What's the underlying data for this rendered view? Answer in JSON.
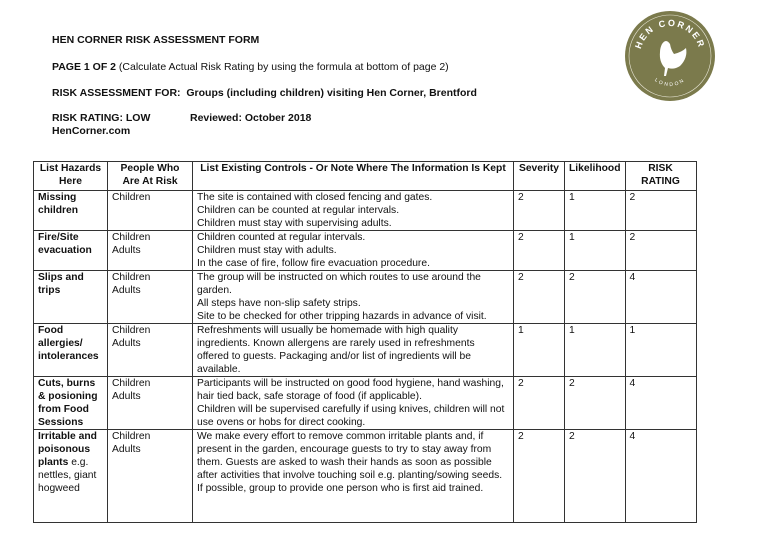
{
  "header": {
    "title": "HEN CORNER RISK ASSESSMENT FORM",
    "page_label": "PAGE 1 OF 2",
    "page_note": "(Calculate Actual Risk Rating by using the formula at bottom of page 2)",
    "for_label": "RISK ASSESSMENT FOR:",
    "for_value": "Groups (including children) visiting Hen Corner, Brentford",
    "risk_rating": "RISK RATING: LOW",
    "reviewed": "Reviewed: October 2018",
    "website": "HenCorner.com"
  },
  "logo": {
    "top_text": "HEN CORNER",
    "bottom_text": "LONDON",
    "color": "#7b7a4c"
  },
  "table": {
    "columns": [
      "List Hazards Here",
      "People Who Are At Risk",
      "List Existing Controls - Or Note Where The Information  Is Kept",
      "Severity",
      "Likelihood",
      "RISK RATING"
    ],
    "rows": [
      {
        "hazard": "Missing children",
        "hazard_note": "",
        "people": [
          "Children"
        ],
        "controls": [
          "The site is contained with closed fencing and gates.",
          "Children can be counted at regular intervals.",
          "Children must stay with supervising adults."
        ],
        "severity": "2",
        "likelihood": "1",
        "rating": "2"
      },
      {
        "hazard": "Fire/Site evacuation",
        "hazard_note": "",
        "people": [
          "Children",
          "Adults"
        ],
        "controls": [
          "Children counted at regular intervals.",
          "Children must stay with adults.",
          "In the case of fire, follow fire evacuation procedure."
        ],
        "severity": "2",
        "likelihood": "1",
        "rating": "2"
      },
      {
        "hazard": "Slips and trips",
        "hazard_note": "",
        "people": [
          "Children",
          "Adults"
        ],
        "controls": [
          "The group will be instructed on which routes to use around the garden.",
          "All steps have non-slip safety strips.",
          "Site to be checked for other tripping hazards in advance of visit."
        ],
        "severity": "2",
        "likelihood": "2",
        "rating": "4"
      },
      {
        "hazard": "Food allergies/ intolerances",
        "hazard_note": "",
        "people": [
          "Children",
          "Adults"
        ],
        "controls": [
          "Refreshments will usually be homemade with high quality ingredients. Known allergens are rarely used in refreshments offered to guests. Packaging and/or list of ingredients will be available."
        ],
        "severity": "1",
        "likelihood": "1",
        "rating": "1"
      },
      {
        "hazard": "Cuts, burns & posioning from Food Sessions",
        "hazard_note": "",
        "people": [
          "Children",
          "Adults"
        ],
        "controls": [
          "Participants will be instructed on good food hygiene, hand washing, hair tied back, safe storage of food (if applicable).",
          "Children will be supervised carefully if using knives, children will not use ovens or hobs for direct cooking."
        ],
        "severity": "2",
        "likelihood": "2",
        "rating": "4"
      },
      {
        "hazard": "Irritable and poisonous plants",
        "hazard_note": "e.g. nettles, giant hogweed",
        "people": [
          "Children",
          "Adults"
        ],
        "controls": [
          "We make every effort to remove common irritable plants and, if present in the garden, encourage guests to try to stay away from them. Guests are asked to wash their hands as soon as possible after activities that involve touching soil e.g. planting/sowing seeds. If possible, group to provide one person who is first aid trained."
        ],
        "severity": "2",
        "likelihood": "2",
        "rating": "4"
      }
    ]
  }
}
